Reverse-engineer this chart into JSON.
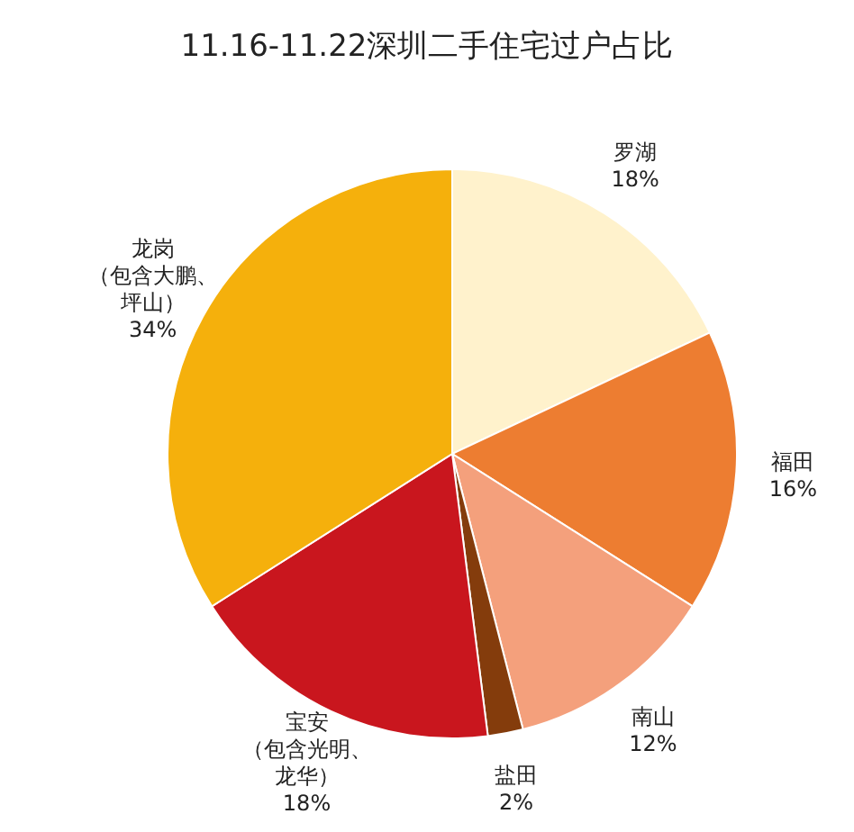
{
  "chart_data": {
    "type": "pie",
    "title": "11.16-11.22深圳二手住宅过户占比",
    "categories": [
      "罗湖",
      "福田",
      "南山",
      "盐田",
      "宝安（包含光明、龙华）",
      "龙岗（包含大鹏、坪山）"
    ],
    "values": [
      18,
      16,
      12,
      2,
      18,
      34
    ],
    "value_labels": [
      "18%",
      "16%",
      "12%",
      "2%",
      "18%",
      "34%"
    ],
    "colors": [
      "#fff2cc",
      "#ed7d31",
      "#f4a07c",
      "#843c0c",
      "#c9161e",
      "#f5b00c"
    ],
    "legend": false
  }
}
